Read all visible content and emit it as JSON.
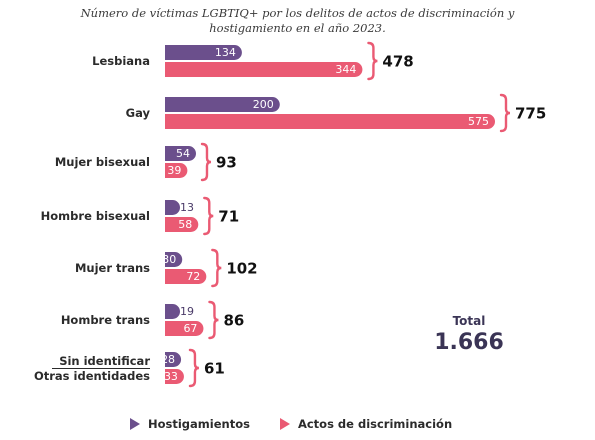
{
  "chart_data": {
    "type": "bar",
    "orientation": "horizontal",
    "title_lines": [
      "Número de víctimas LGBTIQ+ por los delitos de actos de discriminación y",
      "hostigamiento en el año 2023."
    ],
    "categories": [
      "Lesbiana",
      "Gay",
      "Mujer bisexual",
      "Hombre bisexual",
      "Mujer trans",
      "Hombre trans",
      "Sin identificar / Otras identidades"
    ],
    "category_label_lines": [
      [
        "Lesbiana"
      ],
      [
        "Gay"
      ],
      [
        "Mujer bisexual"
      ],
      [
        "Hombre bisexual"
      ],
      [
        "Mujer trans"
      ],
      [
        "Hombre trans"
      ],
      [
        "Sin identificar",
        "Otras identidades"
      ]
    ],
    "series": [
      {
        "name": "Hostigamientos",
        "color": "#6b4f8c",
        "values": [
          134,
          200,
          54,
          13,
          30,
          19,
          28
        ]
      },
      {
        "name": "Actos de discriminación",
        "color": "#ea5a73",
        "values": [
          344,
          575,
          39,
          58,
          72,
          67,
          33
        ]
      }
    ],
    "totals": [
      478,
      775,
      93,
      71,
      102,
      86,
      61
    ],
    "totals_text": [
      "478",
      "775",
      "93",
      "71",
      "102",
      "86",
      "61"
    ],
    "grand_total_label": "Total",
    "grand_total": "1.666",
    "legend_position": "bottom",
    "grid": false,
    "xlim": [
      0,
      575
    ]
  }
}
